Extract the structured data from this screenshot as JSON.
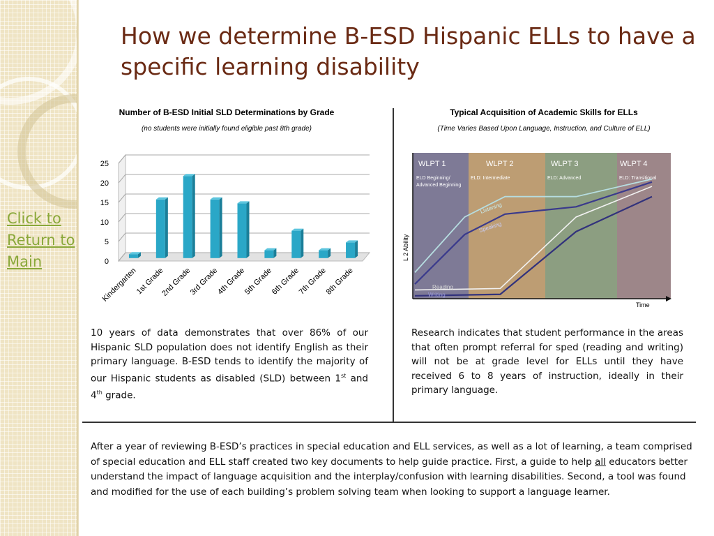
{
  "title": "How we determine B-ESD Hispanic ELLs to have a specific learning disability",
  "back_link": "Click to Return to Main",
  "left_panel": {
    "title": "Number of B-ESD Initial SLD Determinations by Grade",
    "subtitle": "(no students were initially found eligible past 8th grade)",
    "paragraph": {
      "part1": "10 years of data demonstrates that over 86% of our Hispanic SLD population does not identify English as their primary language.  B-ESD tends to identify the majority of our Hispanic students as disabled (SLD) between 1",
      "sup1": "st",
      "part2": " and 4",
      "sup2": "th",
      "part3": " grade."
    }
  },
  "right_panel": {
    "title": "Typical Acquisition of Academic Skills for ELLs",
    "subtitle": "(Time Varies Based Upon Language, Instruction, and Culture of ELL)",
    "paragraph": "Research indicates that student performance in the areas that often prompt referral for sped (reading and writing) will not be at grade level for ELLs until they have received 6 to 8 years of instruction, ideally in their primary language."
  },
  "bottom": {
    "part1": "After a year of reviewing B-ESD’s practices in special education and ELL services, as well as a lot of learning, a team comprised of special education and ELL staff created two key documents to help guide practice.  First, a guide to help ",
    "underlined": "all",
    "part2": " educators better understand the impact of language acquisition and the interplay/confusion with learning disabilities.  Second, a tool was found and modified for the use of each building’s problem solving team when looking to support a language learner."
  },
  "colors": {
    "title": "#6a2a14",
    "link": "#8aa83a",
    "bar": "#2aa7c7",
    "wlpt1": "#6c6888",
    "wlpt2": "#b48f60",
    "wlpt3": "#7c9170",
    "wlpt4": "#8f7579"
  },
  "chart_data": [
    {
      "type": "bar",
      "categories": [
        "Kindergarten",
        "1st Grade",
        "2nd Grade",
        "3rd Grade",
        "4th Grade",
        "5th Grade",
        "6th Grade",
        "7th Grade",
        "8th Grade"
      ],
      "values": [
        1,
        15,
        21,
        15,
        14,
        2,
        7,
        2,
        4
      ],
      "yticks": [
        "0",
        "5",
        "10",
        "15",
        "20",
        "25"
      ],
      "ylim": [
        0,
        25
      ],
      "grid": true
    },
    {
      "type": "line",
      "ylabel": "L 2 Ability",
      "xlabel": "Time",
      "bands": [
        {
          "name": "WLPT 1",
          "stage": "ELD Beginning/ Advanced Beginning"
        },
        {
          "name": "WLPT 2",
          "stage": "ELD: Intermediate"
        },
        {
          "name": "WLPT 3",
          "stage": "ELD:  Advanced"
        },
        {
          "name": "WLPT 4",
          "stage": "ELD: Transitional"
        }
      ],
      "series": [
        {
          "name": "Listening",
          "x": [
            0,
            0.21,
            0.38,
            0.68,
            1.0
          ],
          "y": [
            0.18,
            0.56,
            0.7,
            0.7,
            0.82
          ]
        },
        {
          "name": "Speaking",
          "x": [
            0,
            0.21,
            0.38,
            0.68,
            1.0
          ],
          "y": [
            0.1,
            0.44,
            0.58,
            0.63,
            0.8
          ]
        },
        {
          "name": "Reading",
          "x": [
            0,
            0.36,
            0.68,
            1.0
          ],
          "y": [
            0.06,
            0.07,
            0.56,
            0.77
          ]
        },
        {
          "name": "Writing",
          "x": [
            0,
            0.36,
            0.68,
            1.0
          ],
          "y": [
            0.02,
            0.03,
            0.46,
            0.7
          ]
        }
      ]
    }
  ]
}
